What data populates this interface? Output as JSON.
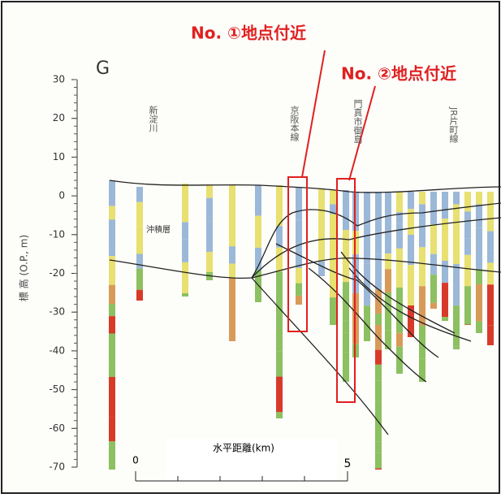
{
  "diagram": {
    "section_label": "G",
    "axis": {
      "label": "標 高 (O.P., m)",
      "ticks": [
        30,
        20,
        10,
        0,
        -10,
        -20,
        -30,
        -40,
        -50,
        -60,
        -70
      ]
    },
    "place_labels": [
      "新淀川",
      "京阪本線",
      "門真市御島",
      "JR片町線"
    ],
    "layer_label": "沖積層",
    "callouts": [
      "No. ①地点付近",
      "No. ②地点付近"
    ],
    "scale": {
      "title": "水平距離(km)",
      "start": "0",
      "end": "5"
    }
  }
}
